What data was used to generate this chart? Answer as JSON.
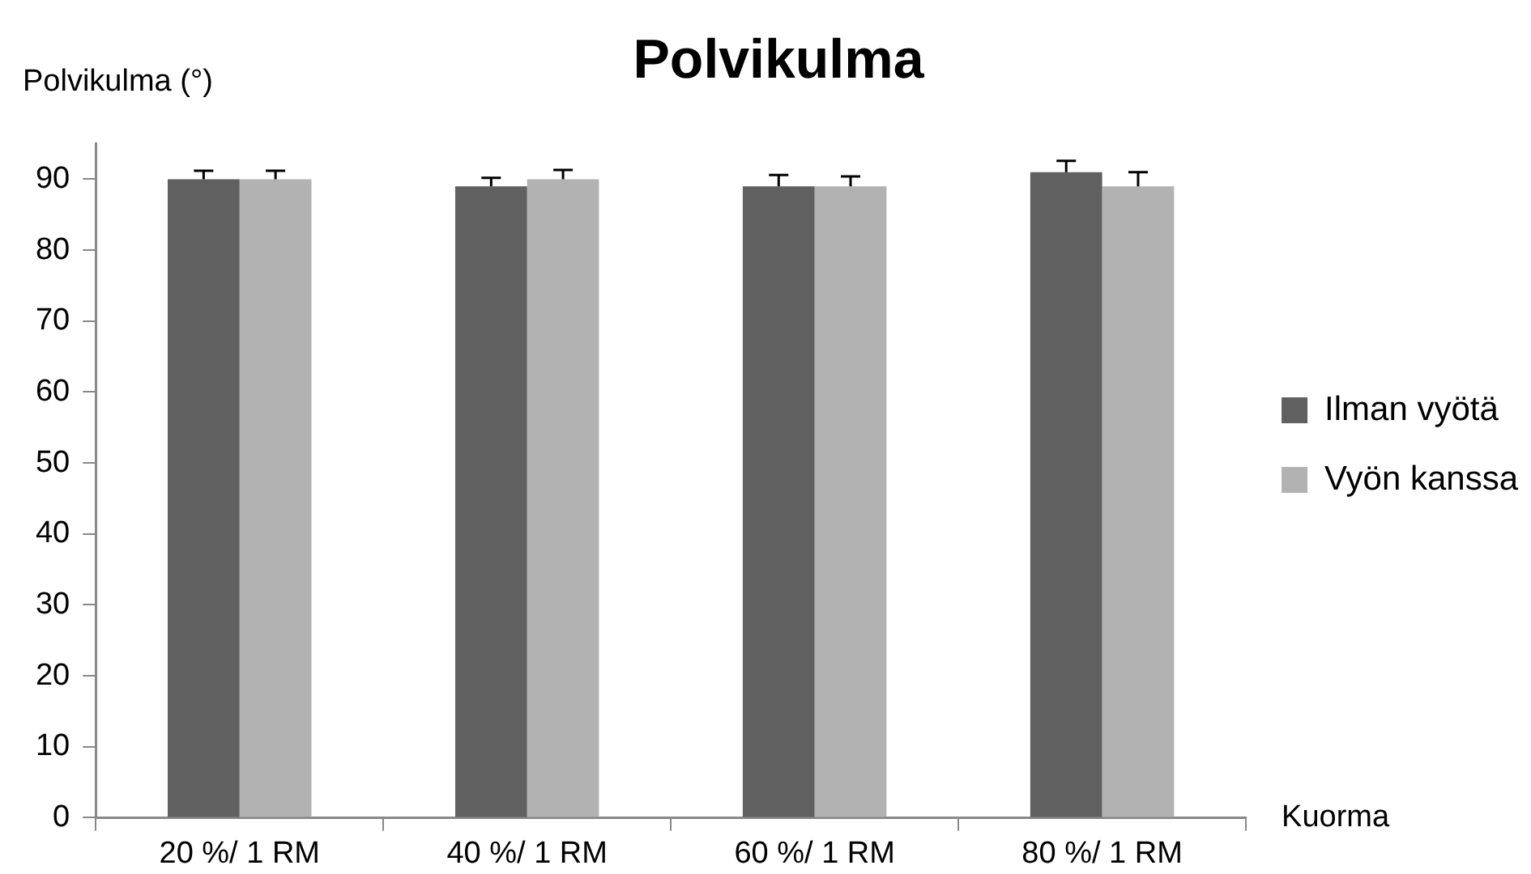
{
  "chart_data": {
    "type": "bar",
    "title": "Polvikulma",
    "ylabel": "Polvikulma (°)",
    "xlabel": "Kuorma",
    "categories": [
      "20 %/ 1 RM",
      "40 %/ 1 RM",
      "60 %/ 1 RM",
      "80 %/ 1 RM"
    ],
    "series": [
      {
        "name": "Ilman vyötä",
        "color": "#606060",
        "values": [
          90,
          89,
          89,
          91
        ],
        "errors": [
          [
            90,
            91.2
          ],
          [
            89,
            90.2
          ],
          [
            89,
            90.6
          ],
          [
            91,
            92.6
          ]
        ]
      },
      {
        "name": "Vyön kanssa",
        "color": "#b2b2b2",
        "values": [
          90,
          90,
          89,
          89
        ],
        "errors": [
          [
            90,
            91.2
          ],
          [
            90,
            91.3
          ],
          [
            89,
            90.4
          ],
          [
            89,
            91
          ]
        ]
      }
    ],
    "ylim": [
      0,
      95
    ],
    "yticks": [
      0,
      10,
      20,
      30,
      40,
      50,
      60,
      70,
      80,
      90
    ],
    "grid": false,
    "legend": "right"
  }
}
